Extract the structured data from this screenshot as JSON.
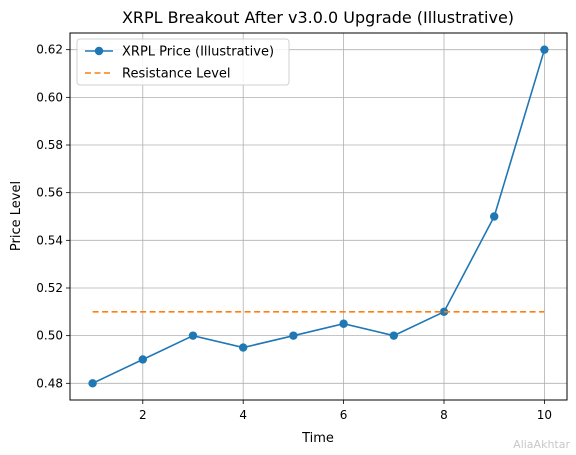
{
  "chart_data": {
    "type": "line",
    "title": "XRPL Breakout After v3.0.0 Upgrade (Illustrative)",
    "xlabel": "Time",
    "ylabel": "Price Level",
    "xlim": [
      0.55,
      10.45
    ],
    "ylim": [
      0.473,
      0.627
    ],
    "xticks": [
      2,
      4,
      6,
      8,
      10
    ],
    "yticks": [
      0.48,
      0.5,
      0.52,
      0.54,
      0.56,
      0.58,
      0.6,
      0.62
    ],
    "ytick_labels": [
      "0.48",
      "0.50",
      "0.52",
      "0.54",
      "0.56",
      "0.58",
      "0.60",
      "0.62"
    ],
    "grid": true,
    "legend_position": "upper-left",
    "series": [
      {
        "name": "XRPL Price (Illustrative)",
        "style": "line-marker",
        "color": "#1f77b4",
        "x": [
          1,
          2,
          3,
          4,
          5,
          6,
          7,
          8,
          9,
          10
        ],
        "y": [
          0.48,
          0.49,
          0.5,
          0.495,
          0.5,
          0.505,
          0.5,
          0.51,
          0.55,
          0.62
        ]
      },
      {
        "name": "Resistance Level",
        "style": "dashed",
        "color": "#ff7f0e",
        "x": [
          1,
          10
        ],
        "y": [
          0.51,
          0.51
        ]
      }
    ]
  },
  "watermark": "AliaAkhtar"
}
